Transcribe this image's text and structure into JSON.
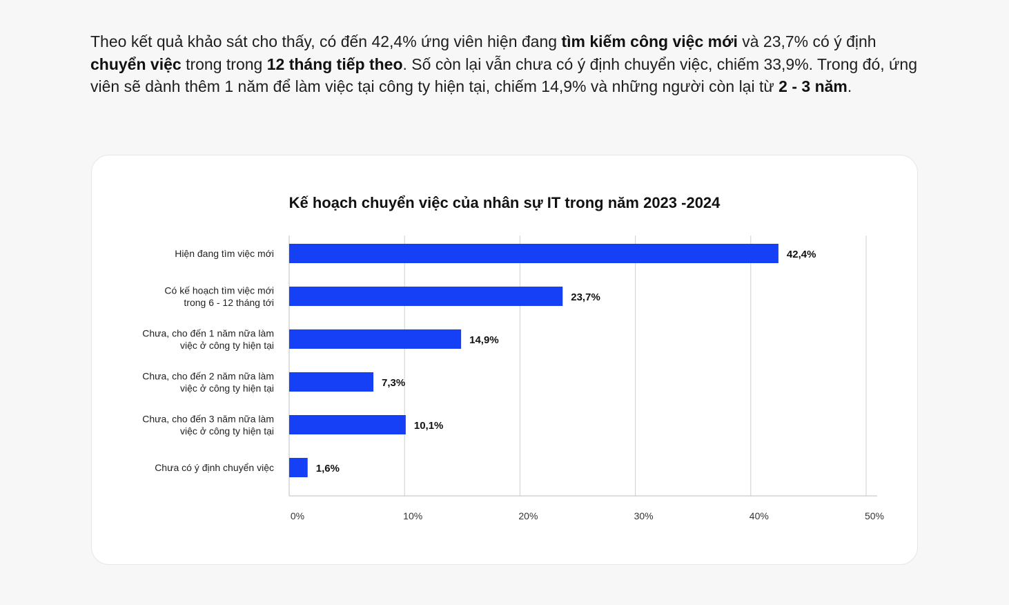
{
  "intro": {
    "segments": [
      {
        "text": "Theo kết quả khảo sát cho thấy, có đến 42,4% ứng viên hiện đang ",
        "bold": false
      },
      {
        "text": "tìm kiếm công việc mới",
        "bold": true
      },
      {
        "text": " và 23,7% có ý định ",
        "bold": false
      },
      {
        "text": "chuyển việc",
        "bold": true
      },
      {
        "text": " trong trong ",
        "bold": false
      },
      {
        "text": "12  tháng tiếp theo",
        "bold": true
      },
      {
        "text": ". Số còn lại vẫn chưa có ý định chuyển việc, chiếm 33,9%. Trong đó, ứng viên sẽ dành thêm 1 năm để làm việc tại công ty hiện tại, chiếm 14,9% và những người còn lại từ ",
        "bold": false
      },
      {
        "text": "2 - 3 năm",
        "bold": true
      },
      {
        "text": ".",
        "bold": false
      }
    ]
  },
  "chart_data": {
    "type": "bar",
    "orientation": "horizontal",
    "title": "Kế hoạch chuyển việc của nhân sự IT trong năm 2023 -2024",
    "categories": [
      [
        "Hiện đang tìm việc mới"
      ],
      [
        "Có kế hoạch tìm việc mới",
        "trong 6 - 12 tháng tới"
      ],
      [
        "Chưa, cho đến 1 năm nữa làm",
        "việc ở công ty hiện tại"
      ],
      [
        "Chưa, cho đến 2 năm nữa làm",
        "việc ở công ty hiện tại"
      ],
      [
        "Chưa, cho đến 3 năm nữa làm",
        "việc ở công ty hiện tại"
      ],
      [
        "Chưa có ý định chuyển việc"
      ]
    ],
    "values": [
      42.4,
      23.7,
      14.9,
      7.3,
      10.1,
      1.6
    ],
    "value_labels": [
      "42,4%",
      "23,7%",
      "14,9%",
      "7,3%",
      "10,1%",
      "1,6%"
    ],
    "xlim": [
      0,
      50
    ],
    "ticks": [
      0,
      10,
      20,
      30,
      40,
      50
    ],
    "tick_labels": [
      "0%",
      "10%",
      "20%",
      "30%",
      "40%",
      "50%"
    ],
    "grid": "vertical",
    "bar_color": "#1640f5",
    "grid_color": "#cfcfcf"
  }
}
